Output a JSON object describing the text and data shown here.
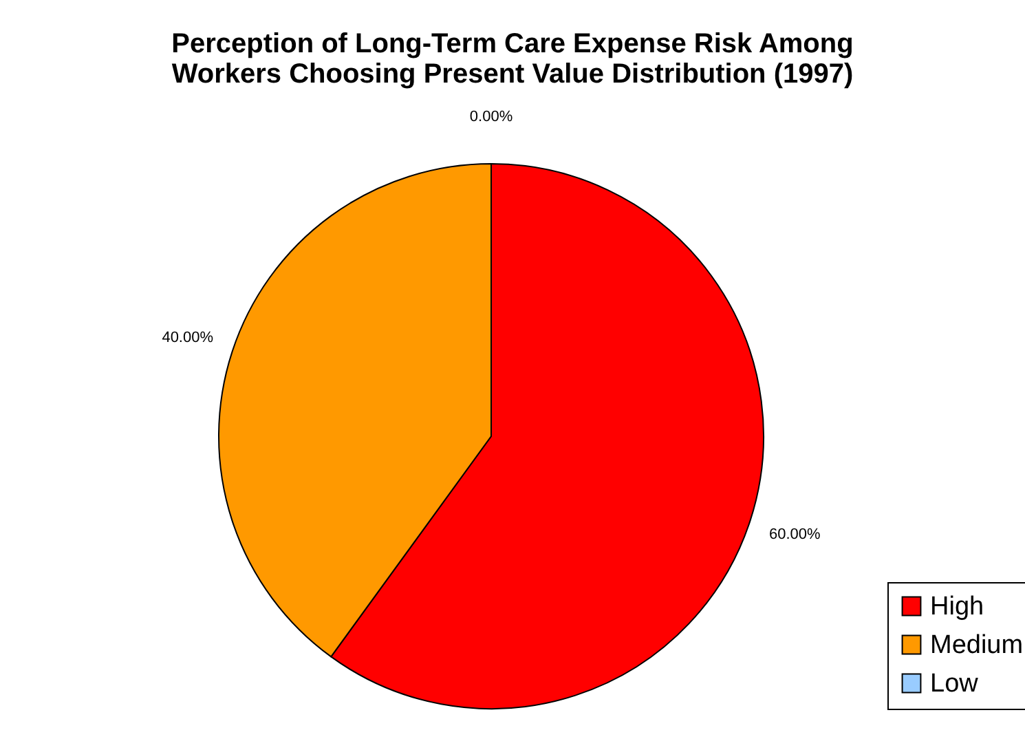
{
  "chart_data": {
    "type": "pie",
    "title": "Perception of Long-Term Care Expense Risk Among\nWorkers Choosing Present Value Distribution (1997)",
    "categories": [
      "High",
      "Medium",
      "Low"
    ],
    "values": [
      60,
      40,
      0
    ],
    "colors": [
      "#ff0000",
      "#ff9900",
      "#99ccff"
    ],
    "value_labels": [
      "60.00%",
      "40.00%",
      "0.00%"
    ],
    "legend": "bottom right"
  }
}
